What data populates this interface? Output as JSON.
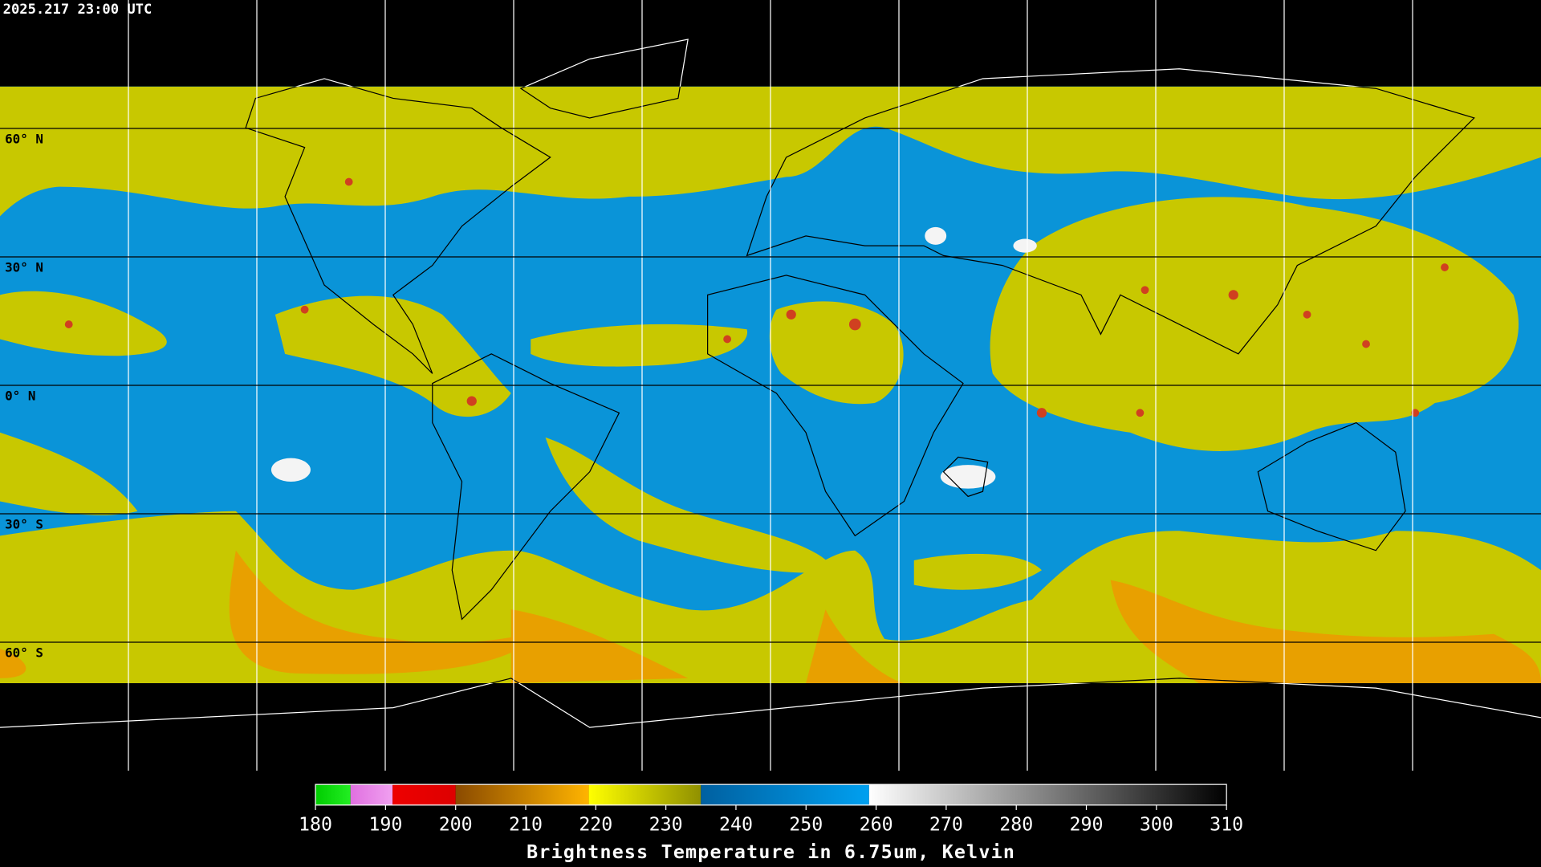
{
  "timestamp": "2025.217 23:00 UTC",
  "latitudes": [
    {
      "value": 60,
      "label": "60° N"
    },
    {
      "value": 30,
      "label": "30° N"
    },
    {
      "value": 0,
      "label": "0° N"
    },
    {
      "value": -30,
      "label": "30° S"
    },
    {
      "value": -60,
      "label": "60° S"
    }
  ],
  "colorbar": {
    "title": "Brightness Temperature in 6.75um, Kelvin",
    "lim": [
      180,
      310
    ],
    "ticks": [
      180,
      190,
      200,
      210,
      220,
      230,
      240,
      250,
      260,
      270,
      280,
      290,
      300,
      310
    ],
    "segments": [
      {
        "from": 180,
        "to": 185,
        "colors": [
          "#00cc00",
          "#22ee22"
        ]
      },
      {
        "from": 185,
        "to": 191,
        "colors": [
          "#e070e0",
          "#f0a0f0"
        ]
      },
      {
        "from": 191,
        "to": 200,
        "colors": [
          "#ee0000",
          "#dd0000"
        ]
      },
      {
        "from": 200,
        "to": 219,
        "colors": [
          "#8a4a00",
          "#ffb400"
        ]
      },
      {
        "from": 219,
        "to": 235,
        "colors": [
          "#ffff00",
          "#909000"
        ]
      },
      {
        "from": 235,
        "to": 259,
        "colors": [
          "#0060a0",
          "#00a0f0"
        ]
      },
      {
        "from": 259,
        "to": 310,
        "colors": [
          "#ffffff",
          "#000000"
        ]
      }
    ]
  }
}
